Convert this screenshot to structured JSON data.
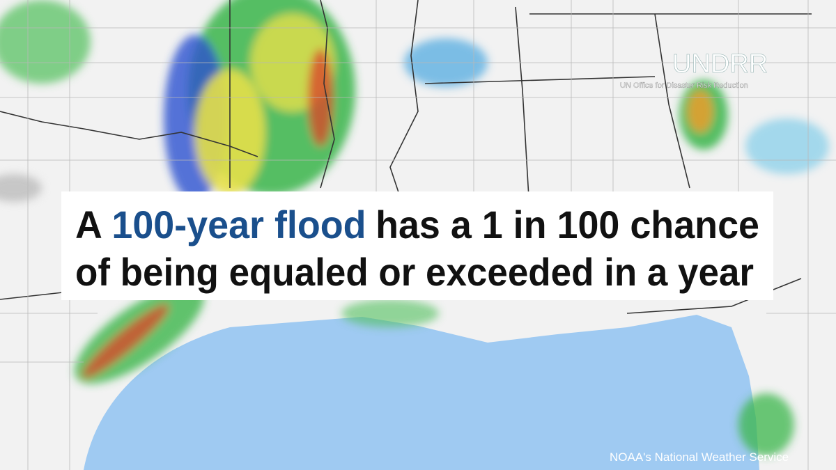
{
  "headline": {
    "line1": {
      "lead": "A",
      "highlight": "100-year flood",
      "rest": "has a 1 in 100 chance"
    },
    "line2": "of being equaled or exceeded in a year"
  },
  "logo": {
    "name": "UNDRR",
    "subtitle": "UN Office for Disaster Risk Reduction"
  },
  "credit": "NOAA's National Weather Service"
}
